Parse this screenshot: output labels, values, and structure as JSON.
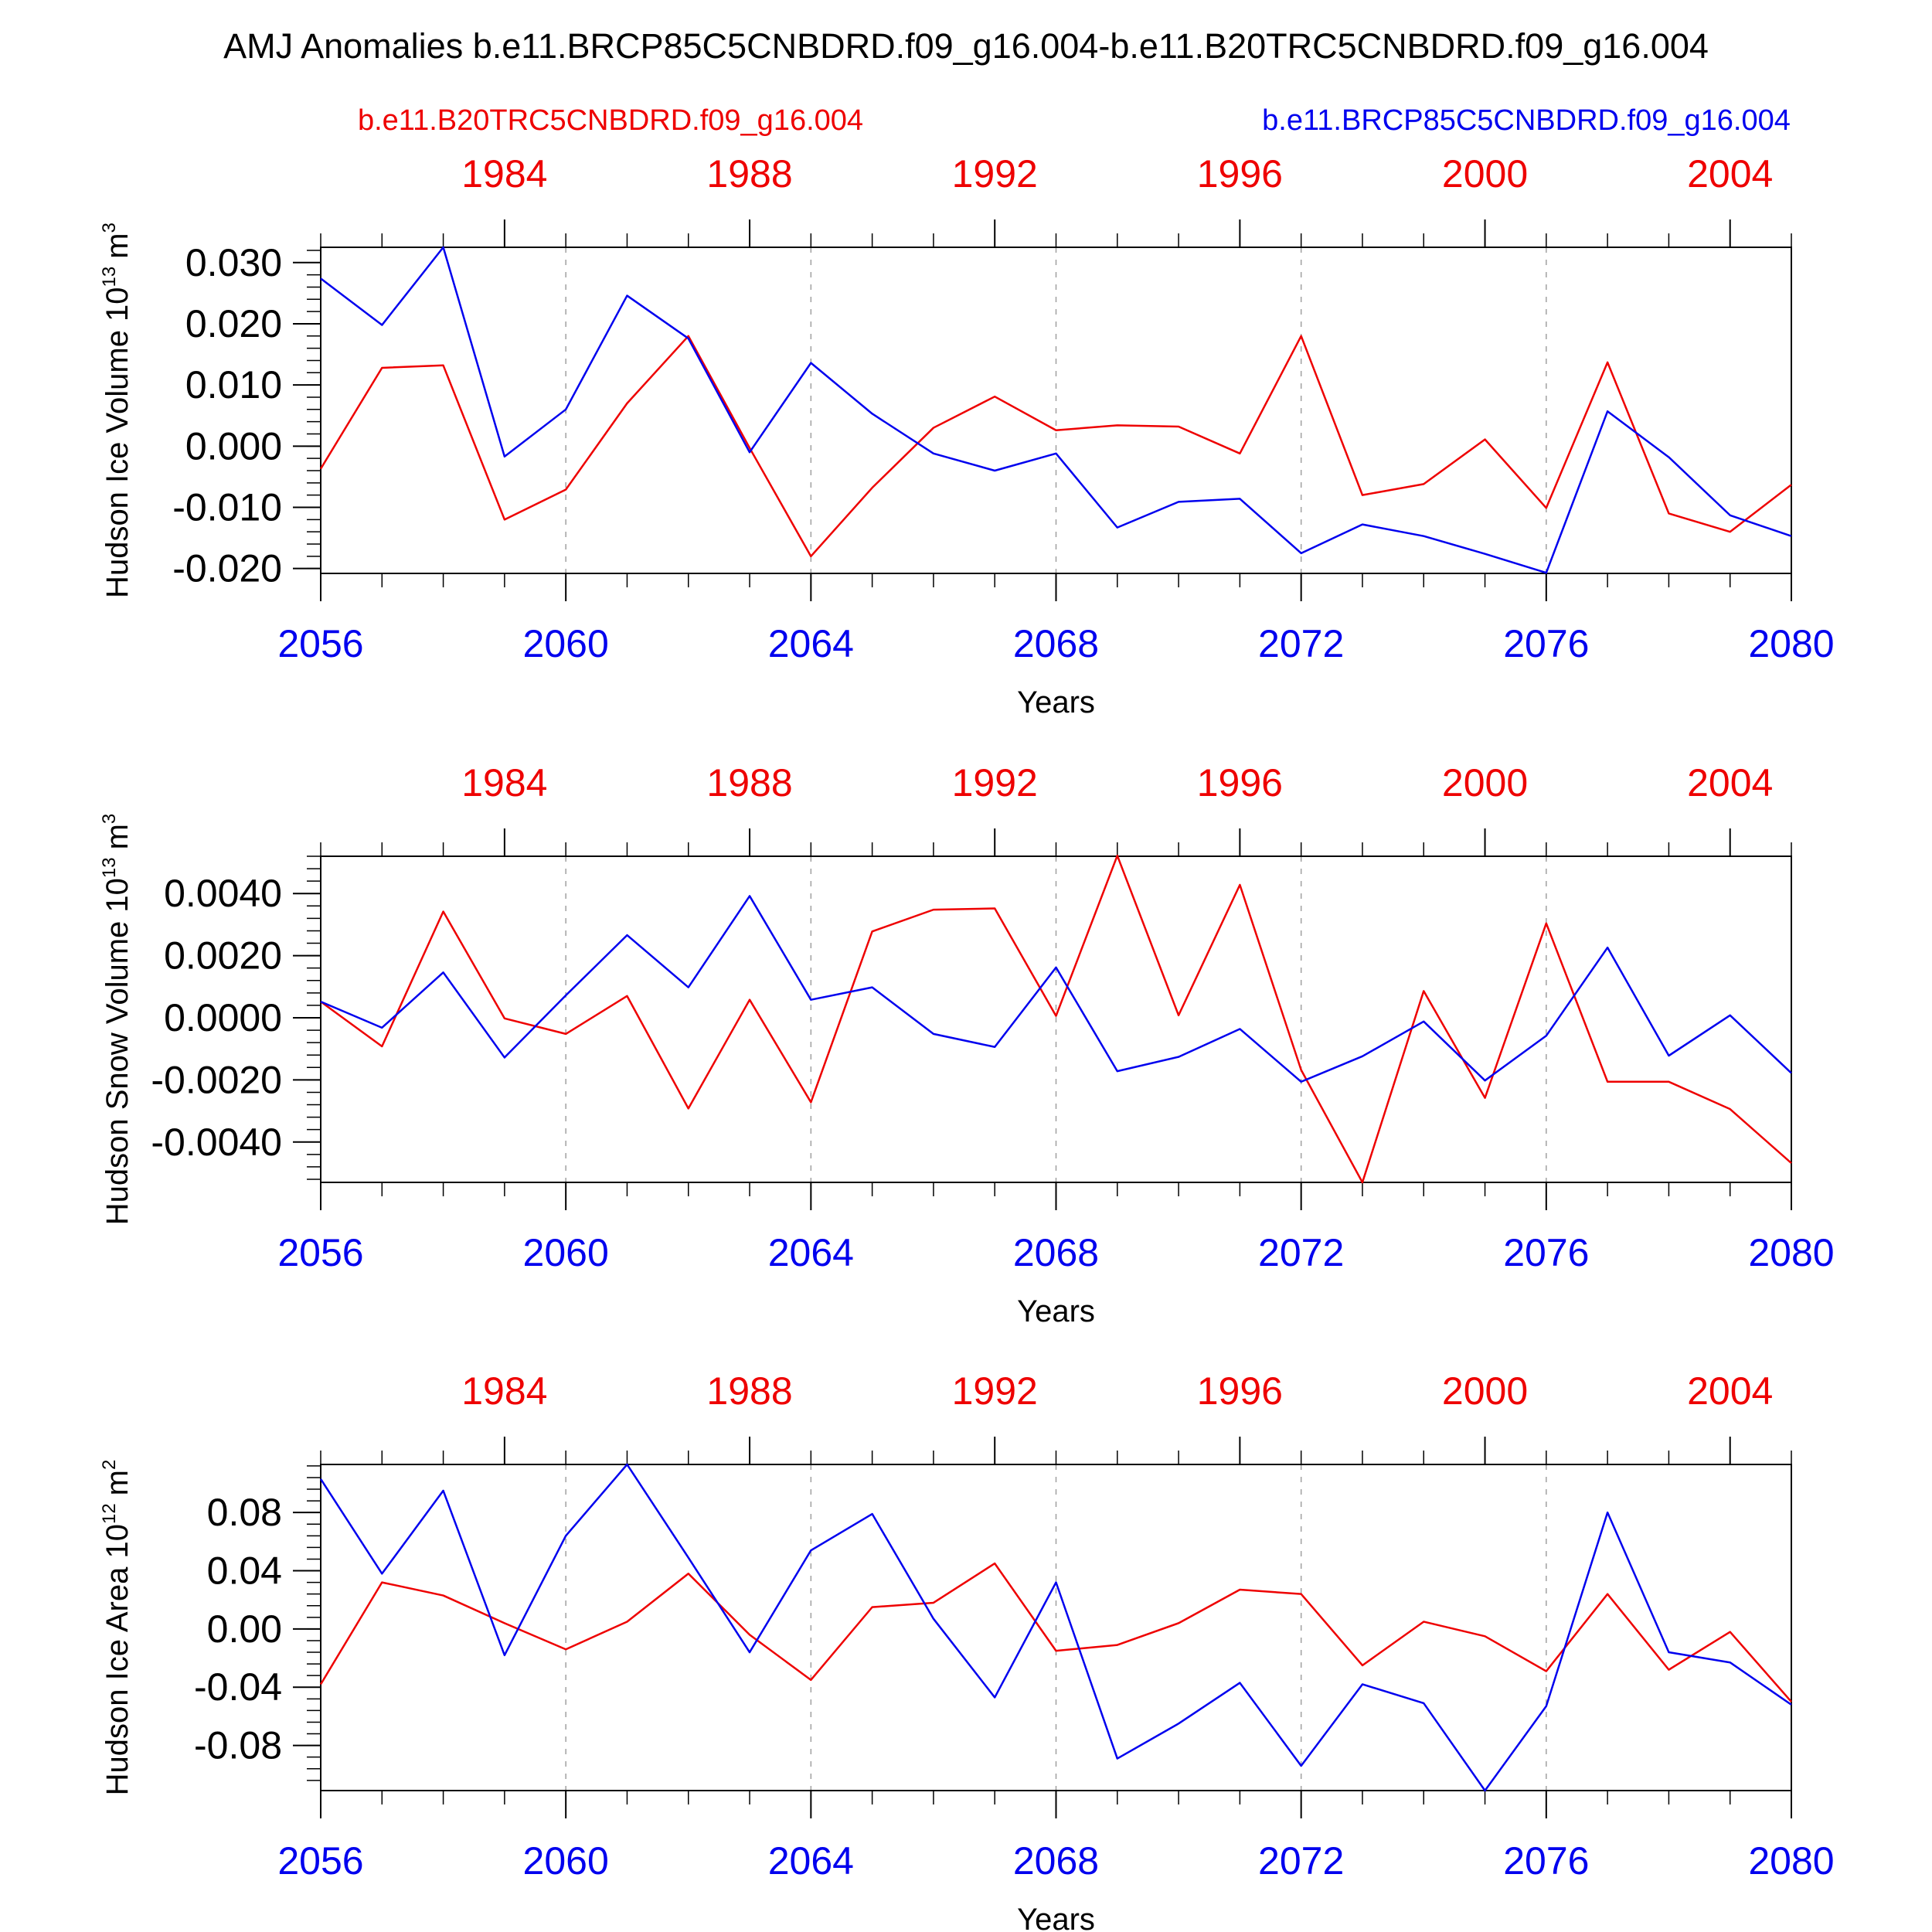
{
  "title": "AMJ Anomalies b.e11.BRCP85C5CNBDRD.f09_g16.004-b.e11.B20TRC5CNBDRD.f09_g16.004",
  "legend": {
    "left": "b.e11.B20TRC5CNBDRD.f09_g16.004",
    "right": "b.e11.BRCP85C5CNBDRD.f09_g16.004"
  },
  "colors": {
    "red_series": "#ee0000",
    "blue_series": "#0000ee",
    "axis": "#000000",
    "grid": "#a0a0a0"
  },
  "chart_data": [
    {
      "type": "line",
      "ylabel": "Hudson Ice Volume 10^13 m^3",
      "ylabel_main": "Hudson Ice Volume 10",
      "ylabel_exp": "13",
      "ylabel_unit": "m",
      "ylabel_unit_exp": "3",
      "xlabel": "Years",
      "ylim": [
        -0.0208,
        0.0325
      ],
      "yticks": [
        -0.02,
        -0.01,
        0.0,
        0.01,
        0.02,
        0.03
      ],
      "ytick_labels": [
        "-0.020",
        "-0.010",
        "0.000",
        "0.010",
        "0.020",
        "0.030"
      ],
      "yminor_step": 0.002,
      "x_bottom": [
        2056,
        2057,
        2058,
        2059,
        2060,
        2061,
        2062,
        2063,
        2064,
        2065,
        2066,
        2067,
        2068,
        2069,
        2070,
        2071,
        2072,
        2073,
        2074,
        2075,
        2076,
        2077,
        2078,
        2079,
        2080
      ],
      "x_top": [
        1981,
        1982,
        1983,
        1984,
        1985,
        1986,
        1987,
        1988,
        1989,
        1990,
        1991,
        1992,
        1993,
        1994,
        1995,
        1996,
        1997,
        1998,
        1999,
        2000,
        2001,
        2002,
        2003,
        2004,
        2005
      ],
      "xticks_bottom": [
        2056,
        2060,
        2064,
        2068,
        2072,
        2076,
        2080
      ],
      "xticks_top": [
        1984,
        1988,
        1992,
        1996,
        2000,
        2004
      ],
      "gridlines_x": [
        2060,
        2064,
        2068,
        2072,
        2076
      ],
      "series": [
        {
          "color": "red",
          "axis": "top",
          "values": [
            -0.0037,
            0.0128,
            0.0132,
            -0.012,
            -0.0071,
            0.007,
            0.018,
            -0.0003,
            -0.018,
            -0.0068,
            0.003,
            0.0081,
            0.0026,
            0.0034,
            0.0032,
            -0.0012,
            0.018,
            -0.008,
            -0.0062,
            0.0011,
            -0.0101,
            0.0137,
            -0.011,
            -0.014,
            -0.0063
          ]
        },
        {
          "color": "blue",
          "axis": "bottom",
          "values": [
            0.0274,
            0.0198,
            0.0325,
            -0.0017,
            0.006,
            0.0246,
            0.0176,
            -0.001,
            0.0136,
            0.0053,
            -0.0012,
            -0.004,
            -0.0012,
            -0.0133,
            -0.0091,
            -0.0086,
            -0.0175,
            -0.0128,
            -0.0147,
            -0.0176,
            -0.0207,
            0.0057,
            -0.0018,
            -0.0113,
            -0.0147
          ]
        }
      ]
    },
    {
      "type": "line",
      "ylabel": "Hudson Snow Volume 10^13 m^3",
      "ylabel_main": "Hudson Snow Volume 10",
      "ylabel_exp": "13",
      "ylabel_unit": "m",
      "ylabel_unit_exp": "3",
      "xlabel": "Years",
      "ylim": [
        -0.0053,
        0.0052
      ],
      "yticks": [
        -0.004,
        -0.002,
        0.0,
        0.002,
        0.004
      ],
      "ytick_labels": [
        "-0.0040",
        "-0.0020",
        "0.0000",
        "0.0020",
        "0.0040"
      ],
      "yminor_step": 0.0004,
      "x_bottom": [
        2056,
        2057,
        2058,
        2059,
        2060,
        2061,
        2062,
        2063,
        2064,
        2065,
        2066,
        2067,
        2068,
        2069,
        2070,
        2071,
        2072,
        2073,
        2074,
        2075,
        2076,
        2077,
        2078,
        2079,
        2080
      ],
      "x_top": [
        1981,
        1982,
        1983,
        1984,
        1985,
        1986,
        1987,
        1988,
        1989,
        1990,
        1991,
        1992,
        1993,
        1994,
        1995,
        1996,
        1997,
        1998,
        1999,
        2000,
        2001,
        2002,
        2003,
        2004,
        2005
      ],
      "xticks_bottom": [
        2056,
        2060,
        2064,
        2068,
        2072,
        2076,
        2080
      ],
      "xticks_top": [
        1984,
        1988,
        1992,
        1996,
        2000,
        2004
      ],
      "gridlines_x": [
        2060,
        2064,
        2068,
        2072,
        2076
      ],
      "series": [
        {
          "color": "red",
          "axis": "top",
          "values": [
            0.00052,
            -0.00092,
            0.00342,
            -2e-05,
            -0.00052,
            0.0007,
            -0.00292,
            0.00058,
            -0.00272,
            0.00278,
            0.00348,
            0.00352,
            6e-05,
            0.00522,
            8e-05,
            0.00428,
            -0.00168,
            -0.0053,
            0.00086,
            -0.00258,
            0.00304,
            -0.00206,
            -0.00206,
            -0.00294,
            -0.00468
          ]
        },
        {
          "color": "blue",
          "axis": "bottom",
          "values": [
            0.00052,
            -0.00032,
            0.00146,
            -0.00128,
            0.00072,
            0.00266,
            0.00098,
            0.00392,
            0.00058,
            0.00098,
            -0.00052,
            -0.00094,
            0.00162,
            -0.00172,
            -0.00126,
            -0.00036,
            -0.00206,
            -0.00124,
            -0.00012,
            -0.00202,
            -0.00058,
            0.00226,
            -0.00122,
            8e-05,
            -0.00178
          ]
        }
      ]
    },
    {
      "type": "line",
      "ylabel": "Hudson Ice Area 10^12 m^2",
      "ylabel_main": "Hudson Ice Area 10",
      "ylabel_exp": "12",
      "ylabel_unit": "m",
      "ylabel_unit_exp": "2",
      "xlabel": "Years",
      "ylim": [
        -0.111,
        0.113
      ],
      "yticks": [
        -0.08,
        -0.04,
        0.0,
        0.04,
        0.08
      ],
      "ytick_labels": [
        "-0.08",
        "-0.04",
        "0.00",
        "0.04",
        "0.08"
      ],
      "yminor_step": 0.008,
      "x_bottom": [
        2056,
        2057,
        2058,
        2059,
        2060,
        2061,
        2062,
        2063,
        2064,
        2065,
        2066,
        2067,
        2068,
        2069,
        2070,
        2071,
        2072,
        2073,
        2074,
        2075,
        2076,
        2077,
        2078,
        2079,
        2080
      ],
      "x_top": [
        1981,
        1982,
        1983,
        1984,
        1985,
        1986,
        1987,
        1988,
        1989,
        1990,
        1991,
        1992,
        1993,
        1994,
        1995,
        1996,
        1997,
        1998,
        1999,
        2000,
        2001,
        2002,
        2003,
        2004,
        2005
      ],
      "xticks_bottom": [
        2056,
        2060,
        2064,
        2068,
        2072,
        2076,
        2080
      ],
      "xticks_top": [
        1984,
        1988,
        1992,
        1996,
        2000,
        2004
      ],
      "gridlines_x": [
        2060,
        2064,
        2068,
        2072,
        2076
      ],
      "series": [
        {
          "color": "red",
          "axis": "top",
          "values": [
            -0.038,
            0.032,
            0.023,
            0.004,
            -0.014,
            0.005,
            0.038,
            -0.004,
            -0.035,
            0.015,
            0.018,
            0.045,
            -0.015,
            -0.011,
            0.004,
            0.027,
            0.024,
            -0.025,
            0.005,
            -0.005,
            -0.029,
            0.024,
            -0.028,
            -0.002,
            -0.05
          ]
        },
        {
          "color": "blue",
          "axis": "bottom",
          "values": [
            0.103,
            0.038,
            0.095,
            -0.018,
            0.064,
            0.113,
            0.049,
            -0.016,
            0.054,
            0.079,
            0.007,
            -0.047,
            0.032,
            -0.089,
            -0.065,
            -0.037,
            -0.094,
            -0.038,
            -0.051,
            -0.111,
            -0.053,
            0.08,
            -0.016,
            -0.023,
            -0.052
          ]
        }
      ]
    }
  ]
}
